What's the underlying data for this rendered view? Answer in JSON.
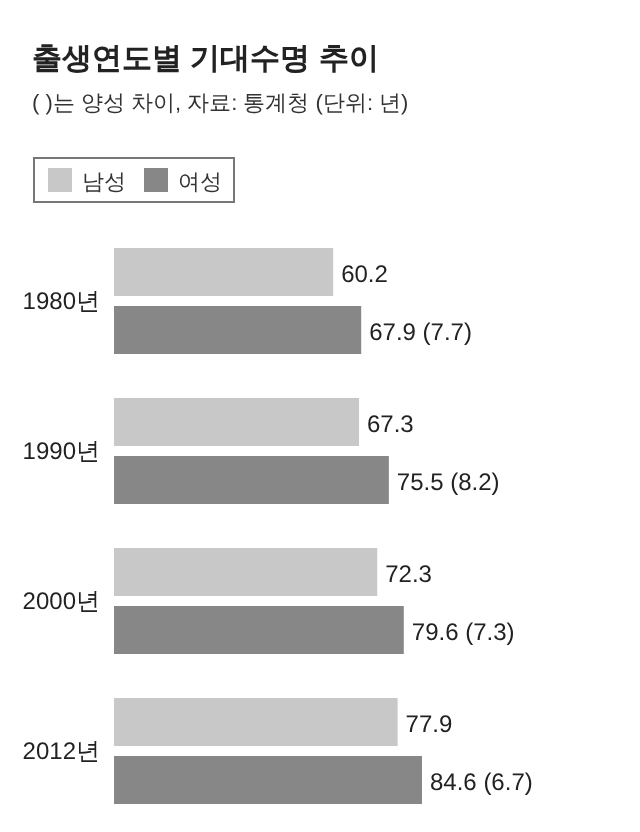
{
  "chart_data": {
    "type": "bar",
    "orientation": "horizontal",
    "title": "출생연도별 기대수명 추이",
    "subtitle": "( )는 양성 차이, 자료: 통계청 (단위: 년)",
    "categories": [
      "1980년",
      "1990년",
      "2000년",
      "2012년"
    ],
    "series": [
      {
        "name": "남성",
        "color": "#c8c8c8",
        "values": [
          60.2,
          67.3,
          72.3,
          77.9
        ],
        "value_labels": [
          "60.2",
          "67.3",
          "72.3",
          "77.9"
        ]
      },
      {
        "name": "여성",
        "color": "#878787",
        "values": [
          67.9,
          75.5,
          79.6,
          84.6
        ],
        "value_labels": [
          "67.9 (7.7)",
          "75.5 (8.2)",
          "79.6 (7.3)",
          "84.6 (6.7)"
        ]
      }
    ],
    "legend": "top left"
  }
}
